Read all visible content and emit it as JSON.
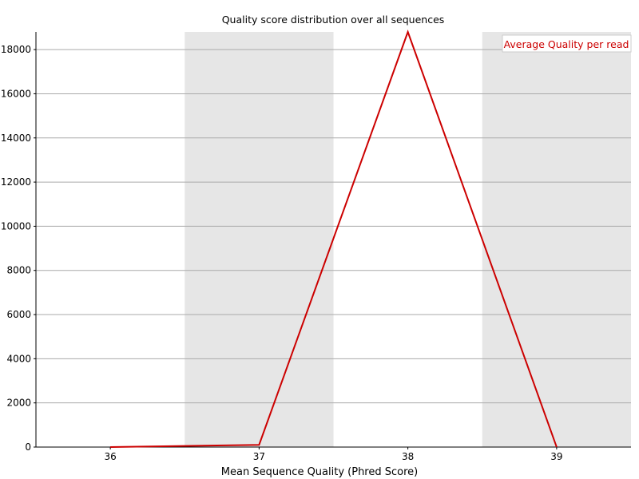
{
  "chart_data": {
    "type": "line",
    "title": "Quality score distribution over all sequences",
    "xlabel": "Mean Sequence Quality (Phred Score)",
    "ylabel": "",
    "x": [
      36,
      37,
      38,
      39
    ],
    "series": [
      {
        "name": "Average Quality per read",
        "values": [
          2,
          100,
          18800,
          2
        ],
        "color": "#cc0000"
      }
    ],
    "y_ticks": [
      0,
      2000,
      4000,
      6000,
      8000,
      10000,
      12000,
      14000,
      16000,
      18000
    ],
    "ylim": [
      0,
      18800
    ],
    "grid": true,
    "legend_position": "top-right",
    "band_colors": [
      "#ffffff",
      "#e6e6e6"
    ]
  }
}
